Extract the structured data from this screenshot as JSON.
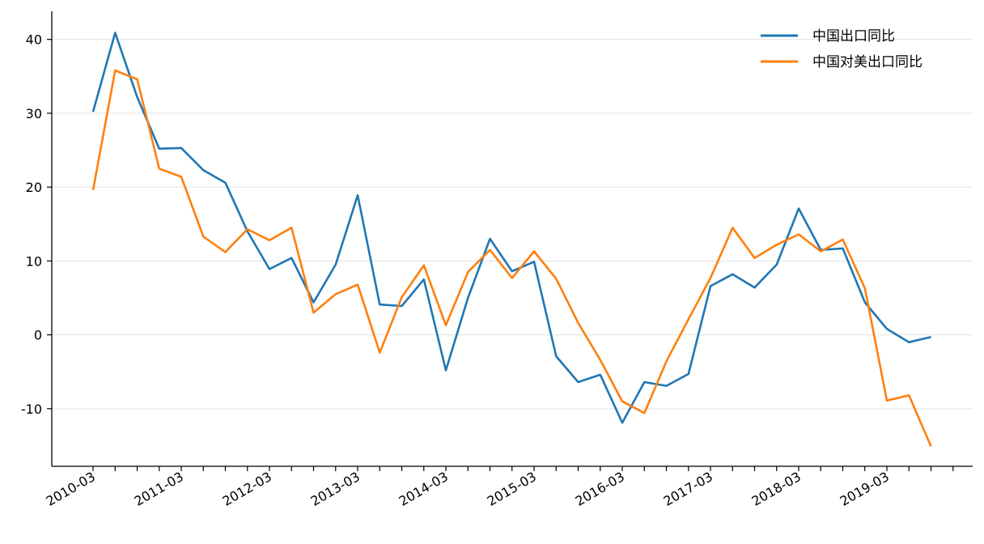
{
  "chart_data": {
    "type": "line",
    "title": "",
    "xlabel": "",
    "ylabel": "",
    "x": [
      "2010-03",
      "2010-06",
      "2010-09",
      "2010-12",
      "2011-03",
      "2011-06",
      "2011-09",
      "2011-12",
      "2012-03",
      "2012-06",
      "2012-09",
      "2012-12",
      "2013-03",
      "2013-06",
      "2013-09",
      "2013-12",
      "2014-03",
      "2014-06",
      "2014-09",
      "2014-12",
      "2015-03",
      "2015-06",
      "2015-09",
      "2015-12",
      "2016-03",
      "2016-06",
      "2016-09",
      "2016-12",
      "2017-03",
      "2017-06",
      "2017-09",
      "2017-12",
      "2018-03",
      "2018-06",
      "2018-09",
      "2018-12",
      "2019-03",
      "2019-06",
      "2019-09",
      "2019-12"
    ],
    "x_tick_labels": [
      "2010-03",
      "2011-03",
      "2012-03",
      "2013-03",
      "2014-03",
      "2015-03",
      "2016-03",
      "2017-03",
      "2018-03",
      "2019-03"
    ],
    "ylim": [
      -17.8,
      43.8
    ],
    "y_ticks": [
      -10,
      0,
      10,
      20,
      30,
      40
    ],
    "grid": "horizontal",
    "legend_position": "top-right",
    "series": [
      {
        "name": "中国出口同比",
        "color": "#1f77b4",
        "values": [
          30.2,
          40.9,
          32.2,
          25.2,
          25.3,
          22.3,
          20.6,
          14.0,
          8.9,
          10.4,
          4.4,
          9.5,
          18.9,
          4.1,
          3.9,
          7.5,
          -4.8,
          5.0,
          13.0,
          8.6,
          9.9,
          -2.9,
          -6.4,
          -5.4,
          -11.9,
          -6.4,
          -6.9,
          -5.3,
          6.6,
          8.2,
          6.4,
          9.5,
          17.1,
          11.5,
          11.7,
          4.4,
          0.8,
          -1.0,
          -0.3,
          null
        ]
      },
      {
        "name": "中国对美出口同比",
        "color": "#ff7f0e",
        "values": [
          19.6,
          35.8,
          34.6,
          22.5,
          21.4,
          13.3,
          11.2,
          14.3,
          12.8,
          14.5,
          3.0,
          5.5,
          6.8,
          -2.4,
          5.1,
          9.4,
          1.3,
          8.5,
          11.5,
          7.7,
          11.3,
          7.6,
          1.6,
          -3.4,
          -9.0,
          -10.6,
          -3.6,
          2.1,
          7.7,
          14.5,
          10.4,
          12.2,
          13.6,
          11.3,
          12.9,
          6.3,
          -8.9,
          -8.2,
          -15.1,
          null
        ]
      }
    ]
  }
}
